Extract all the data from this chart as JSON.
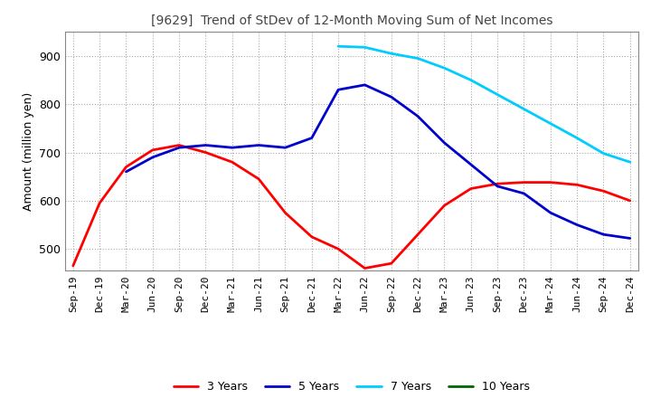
{
  "title": "[9629]  Trend of StDev of 12-Month Moving Sum of Net Incomes",
  "ylabel": "Amount (million yen)",
  "ylim": [
    455,
    950
  ],
  "yticks": [
    500,
    600,
    700,
    800,
    900
  ],
  "line_colors": {
    "3 Years": "#ff0000",
    "5 Years": "#0000cc",
    "7 Years": "#00ccff",
    "10 Years": "#006600"
  },
  "x_labels": [
    "Sep-19",
    "Dec-19",
    "Mar-20",
    "Jun-20",
    "Sep-20",
    "Dec-20",
    "Mar-21",
    "Jun-21",
    "Sep-21",
    "Dec-21",
    "Mar-22",
    "Jun-22",
    "Sep-22",
    "Dec-22",
    "Mar-23",
    "Jun-23",
    "Sep-23",
    "Dec-23",
    "Mar-24",
    "Jun-24",
    "Sep-24",
    "Dec-24"
  ],
  "series": {
    "3 Years": [
      465,
      595,
      670,
      705,
      715,
      700,
      680,
      645,
      575,
      525,
      500,
      460,
      470,
      530,
      590,
      625,
      635,
      638,
      638,
      633,
      620,
      600
    ],
    "5 Years": [
      null,
      null,
      660,
      690,
      710,
      715,
      710,
      715,
      710,
      730,
      830,
      840,
      815,
      775,
      720,
      675,
      630,
      615,
      575,
      550,
      530,
      522
    ],
    "7 Years": [
      null,
      null,
      null,
      null,
      null,
      null,
      null,
      null,
      null,
      null,
      920,
      918,
      905,
      895,
      875,
      850,
      820,
      790,
      760,
      730,
      698,
      680
    ],
    "10 Years": [
      null,
      null,
      null,
      null,
      null,
      null,
      null,
      null,
      null,
      null,
      null,
      null,
      null,
      null,
      null,
      null,
      null,
      null,
      null,
      null,
      null,
      null
    ]
  },
  "title_color": "#444444",
  "title_fontsize": 10,
  "tick_fontsize": 8,
  "ylabel_fontsize": 9
}
